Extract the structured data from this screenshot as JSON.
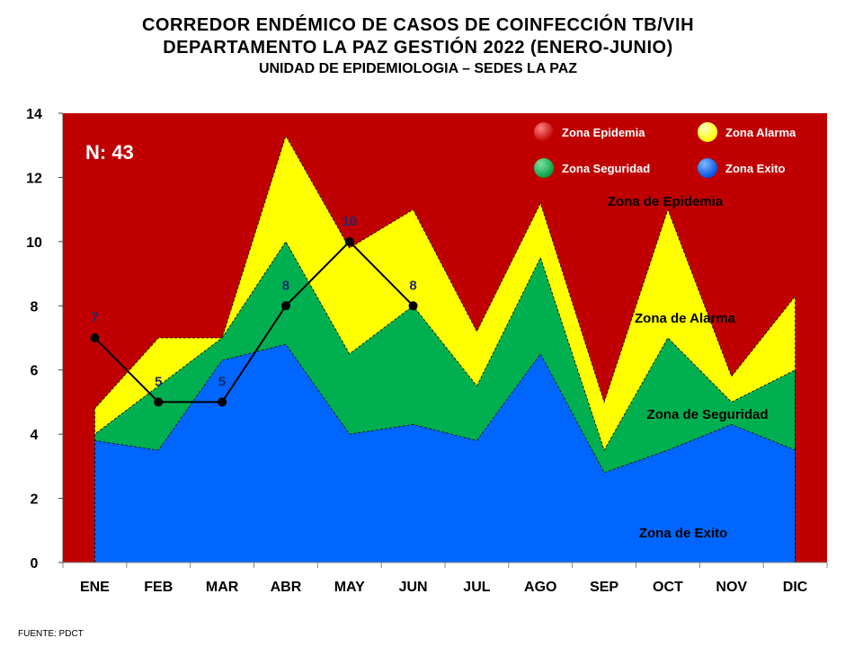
{
  "titles": {
    "line1": "CORREDOR ENDÉMICO DE CASOS DE COINFECCIÓN TB/VIH",
    "line2": "DEPARTAMENTO  LA PAZ GESTIÓN 2022 (ENERO-JUNIO)",
    "line3": "UNIDAD DE EPIDEMIOLOGIA – SEDES LA PAZ"
  },
  "source": "FUENTE:   PDCT",
  "chart_data": {
    "type": "area",
    "categories": [
      "ENE",
      "FEB",
      "MAR",
      "ABR",
      "MAY",
      "JUN",
      "JUL",
      "AGO",
      "SEP",
      "OCT",
      "NOV",
      "DIC"
    ],
    "ylim": [
      0,
      14
    ],
    "yticks": [
      0,
      2,
      4,
      6,
      8,
      10,
      12,
      14
    ],
    "grid": false,
    "legend_position": "top-right",
    "colors": {
      "epidemia": "#C00000",
      "alarma": "#FFFF00",
      "seguridad": "#00B050",
      "exito": "#0066FF",
      "cases_line": "#000000",
      "cases_label": "#1F2A6B"
    },
    "series": [
      {
        "name": "Zona Exito",
        "values": [
          3.8,
          3.5,
          6.3,
          6.8,
          4.0,
          4.3,
          3.8,
          6.5,
          2.8,
          3.5,
          4.3,
          3.5
        ]
      },
      {
        "name": "Zona Seguridad",
        "values": [
          4.0,
          5.5,
          7.0,
          10.0,
          6.5,
          8.0,
          5.5,
          9.5,
          3.5,
          7.0,
          5.0,
          6.0
        ]
      },
      {
        "name": "Zona Alarma",
        "values": [
          4.8,
          7.0,
          7.0,
          13.3,
          9.8,
          11.0,
          7.2,
          11.2,
          5.0,
          11.0,
          5.8,
          8.3
        ]
      }
    ],
    "cases": {
      "values": [
        7,
        5,
        5,
        8,
        10,
        8
      ],
      "labels": [
        "7",
        "5",
        "5",
        "8",
        "10",
        "8"
      ]
    },
    "n_label": "N: 43",
    "legend": [
      {
        "label": "Zona Epidemia",
        "color": "#C00000"
      },
      {
        "label": "Zona Alarma",
        "color": "#FFFF00"
      },
      {
        "label": "Zona Seguridad",
        "color": "#00B050"
      },
      {
        "label": "Zona Exito",
        "color": "#0066FF"
      }
    ],
    "zone_labels": {
      "epidemia": "Zona de Epidemia",
      "alarma": "Zona de Alarma",
      "seguridad": "Zona de Seguridad",
      "exito": "Zona de Exito"
    }
  }
}
